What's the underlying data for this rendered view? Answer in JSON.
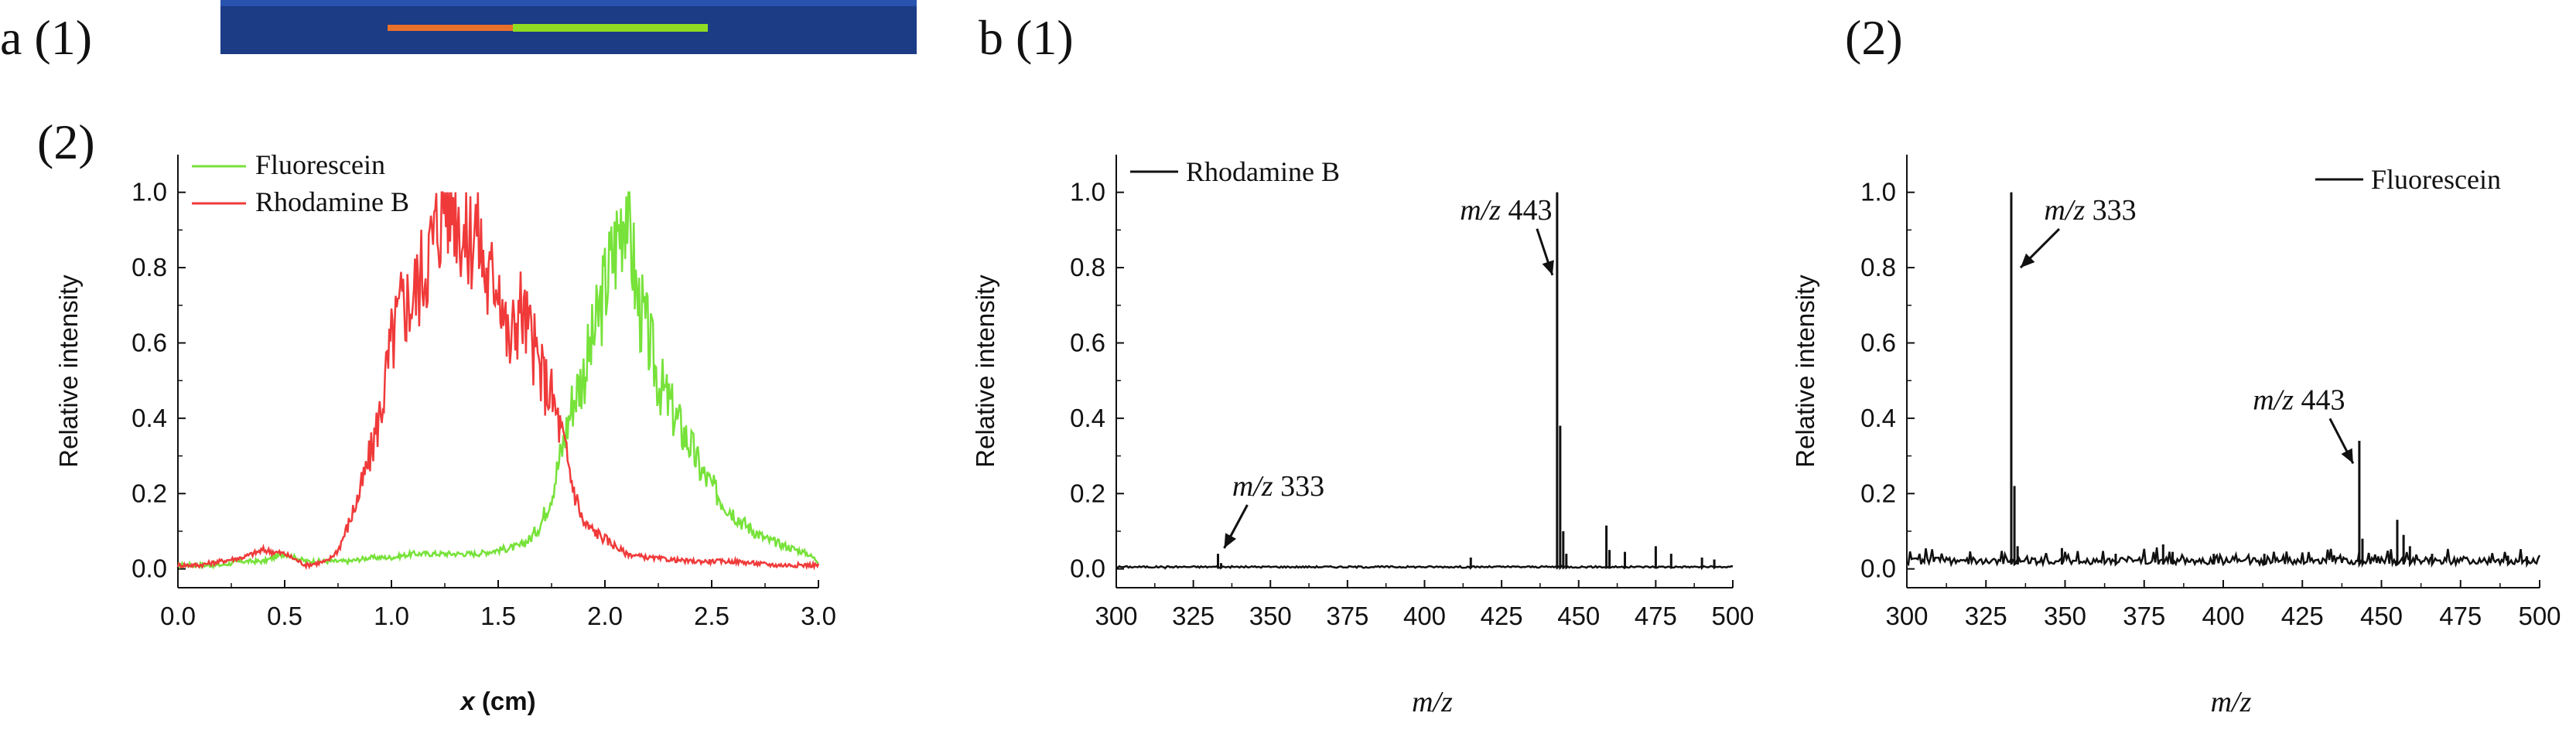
{
  "panels": {
    "a1": "a (1)",
    "a2": "(2)",
    "b1": "b (1)",
    "b2": "(2)"
  },
  "photo": {
    "background": "#1c3c86",
    "bands": [
      {
        "name": "orange-band",
        "color": "#e8702a",
        "from": 0.24,
        "to": 0.42
      },
      {
        "name": "green-band",
        "color": "#8fdc22",
        "from": 0.42,
        "to": 0.7
      }
    ]
  },
  "chart_data": [
    {
      "id": "a2",
      "type": "line",
      "title": "",
      "xlabel_var": "x",
      "xlabel_unit": "(cm)",
      "ylabel": "Relative intensity",
      "xlim": [
        0.0,
        3.0
      ],
      "ylim": [
        -0.05,
        1.1
      ],
      "xticks": [
        "0.0",
        "0.5",
        "1.0",
        "1.5",
        "2.0",
        "2.5",
        "3.0"
      ],
      "yticks": [
        "0.0",
        "0.2",
        "0.4",
        "0.6",
        "0.8",
        "1.0"
      ],
      "legend_position": "top-left",
      "series": [
        {
          "name": "Fluorescein",
          "color": "#77e23a",
          "x": [
            0.0,
            0.1,
            0.2,
            0.3,
            0.4,
            0.5,
            0.6,
            0.7,
            0.8,
            0.9,
            1.0,
            1.1,
            1.2,
            1.3,
            1.4,
            1.5,
            1.6,
            1.65,
            1.7,
            1.75,
            1.8,
            1.85,
            1.9,
            1.95,
            2.0,
            2.05,
            2.1,
            2.15,
            2.2,
            2.25,
            2.3,
            2.35,
            2.4,
            2.45,
            2.5,
            2.55,
            2.6,
            2.65,
            2.7,
            2.75,
            2.8,
            2.85,
            2.9,
            2.95,
            3.0
          ],
          "y": [
            0.01,
            0.01,
            0.01,
            0.02,
            0.02,
            0.04,
            0.02,
            0.02,
            0.02,
            0.03,
            0.03,
            0.04,
            0.04,
            0.04,
            0.04,
            0.05,
            0.06,
            0.08,
            0.12,
            0.2,
            0.32,
            0.45,
            0.52,
            0.62,
            0.75,
            0.86,
            1.0,
            0.72,
            0.62,
            0.5,
            0.44,
            0.38,
            0.33,
            0.26,
            0.22,
            0.18,
            0.15,
            0.12,
            0.1,
            0.08,
            0.07,
            0.06,
            0.05,
            0.04,
            0.02
          ]
        },
        {
          "name": "Rhodamine B",
          "color": "#f03a3a",
          "x": [
            0.0,
            0.1,
            0.2,
            0.3,
            0.4,
            0.5,
            0.6,
            0.7,
            0.75,
            0.8,
            0.85,
            0.9,
            0.95,
            1.0,
            1.05,
            1.1,
            1.15,
            1.2,
            1.25,
            1.3,
            1.35,
            1.4,
            1.45,
            1.5,
            1.55,
            1.6,
            1.65,
            1.7,
            1.75,
            1.8,
            1.85,
            1.9,
            1.95,
            2.0,
            2.1,
            2.2,
            2.4,
            2.6,
            2.8,
            3.0
          ],
          "y": [
            0.01,
            0.01,
            0.02,
            0.03,
            0.05,
            0.04,
            0.01,
            0.02,
            0.05,
            0.12,
            0.2,
            0.3,
            0.42,
            0.6,
            0.7,
            0.72,
            0.8,
            0.88,
            1.0,
            0.98,
            0.86,
            0.92,
            0.75,
            0.8,
            0.58,
            0.7,
            0.62,
            0.52,
            0.46,
            0.35,
            0.22,
            0.12,
            0.1,
            0.08,
            0.04,
            0.03,
            0.02,
            0.02,
            0.01,
            0.01
          ]
        }
      ]
    },
    {
      "id": "b1",
      "type": "line",
      "title": "",
      "xlabel": "m/z",
      "ylabel": "Relative intensity",
      "xlim": [
        300,
        500
      ],
      "ylim": [
        -0.05,
        1.1
      ],
      "xticks": [
        "300",
        "325",
        "350",
        "375",
        "400",
        "425",
        "450",
        "475",
        "500"
      ],
      "yticks": [
        "0.0",
        "0.2",
        "0.4",
        "0.6",
        "0.8",
        "1.0"
      ],
      "legend_position": "top-left",
      "series": [
        {
          "name": "Rhodamine B",
          "color": "#111111",
          "peaks": [
            [
              316,
              0.005
            ],
            [
              333,
              0.04
            ],
            [
              334,
              0.015
            ],
            [
              415,
              0.03
            ],
            [
              443,
              1.0
            ],
            [
              444,
              0.38
            ],
            [
              445,
              0.1
            ],
            [
              446,
              0.04
            ],
            [
              459,
              0.115
            ],
            [
              460,
              0.05
            ],
            [
              465,
              0.045
            ],
            [
              475,
              0.06
            ],
            [
              480,
              0.04
            ],
            [
              490,
              0.03
            ],
            [
              494,
              0.025
            ]
          ]
        }
      ],
      "annotations": [
        {
          "label_prefix": "m/z",
          "label_value": "443",
          "x": 443,
          "y": 0.78
        },
        {
          "label_prefix": "m/z",
          "label_value": "333",
          "x": 333,
          "y": 0.055
        }
      ]
    },
    {
      "id": "b2",
      "type": "line",
      "title": "",
      "xlabel": "m/z",
      "ylabel": "Relative intensity",
      "xlim": [
        300,
        500
      ],
      "ylim": [
        -0.05,
        1.1
      ],
      "xticks": [
        "300",
        "325",
        "350",
        "375",
        "400",
        "425",
        "450",
        "475",
        "500"
      ],
      "yticks": [
        "0.0",
        "0.2",
        "0.4",
        "0.6",
        "0.8",
        "1.0"
      ],
      "legend_position": "top-right",
      "series": [
        {
          "name": "Fluorescein",
          "color": "#111111",
          "peaks": [
            [
              333,
              1.0
            ],
            [
              334,
              0.22
            ],
            [
              335,
              0.06
            ],
            [
              349,
              0.055
            ],
            [
              366,
              0.04
            ],
            [
              381,
              0.065
            ],
            [
              384,
              0.045
            ],
            [
              397,
              0.04
            ],
            [
              413,
              0.04
            ],
            [
              443,
              0.34
            ],
            [
              444,
              0.08
            ],
            [
              455,
              0.13
            ],
            [
              457,
              0.09
            ],
            [
              459,
              0.06
            ],
            [
              466,
              0.04
            ],
            [
              490,
              0.035
            ],
            [
              496,
              0.03
            ]
          ]
        }
      ],
      "annotations": [
        {
          "label_prefix": "m/z",
          "label_value": "333",
          "x": 333,
          "y": 0.8
        },
        {
          "label_prefix": "m/z",
          "label_value": "443",
          "x": 443,
          "y": 0.28
        }
      ]
    }
  ]
}
